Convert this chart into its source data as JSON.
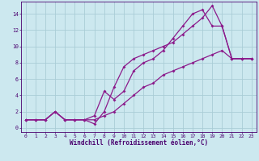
{
  "xlabel": "Windchill (Refroidissement éolien,°C)",
  "bg_color": "#cce8ef",
  "grid_color": "#aacdd6",
  "line_color": "#8b1a8b",
  "xlim": [
    -0.5,
    23.5
  ],
  "ylim": [
    -0.5,
    15.5
  ],
  "xticks": [
    0,
    1,
    2,
    3,
    4,
    5,
    6,
    7,
    8,
    9,
    10,
    11,
    12,
    13,
    14,
    15,
    16,
    17,
    18,
    19,
    20,
    21,
    22,
    23
  ],
  "yticks": [
    0,
    2,
    4,
    6,
    8,
    10,
    12,
    14
  ],
  "series1_x": [
    0,
    1,
    2,
    3,
    4,
    5,
    6,
    7,
    8,
    9,
    10,
    11,
    12,
    13,
    14,
    15,
    16,
    17,
    18,
    19,
    20,
    21,
    22,
    23
  ],
  "series1_y": [
    1,
    1,
    1,
    2,
    1,
    1,
    1,
    0.5,
    2,
    5,
    7.5,
    8.5,
    9,
    9.5,
    10,
    10.5,
    11.5,
    12.5,
    13.5,
    15,
    12.5,
    8.5,
    8.5,
    8.5
  ],
  "series2_x": [
    0,
    1,
    2,
    3,
    4,
    5,
    6,
    7,
    8,
    9,
    10,
    11,
    12,
    13,
    14,
    15,
    16,
    17,
    18,
    19,
    20,
    21,
    22,
    23
  ],
  "series2_y": [
    1,
    1,
    1,
    2,
    1,
    1,
    1,
    1.5,
    4.5,
    3.5,
    4.5,
    7,
    8,
    8.5,
    9.5,
    11,
    12.5,
    14,
    14.5,
    12.5,
    12.5,
    8.5,
    8.5,
    8.5
  ],
  "series3_x": [
    0,
    1,
    2,
    3,
    4,
    5,
    6,
    7,
    8,
    9,
    10,
    11,
    12,
    13,
    14,
    15,
    16,
    17,
    18,
    19,
    20,
    21,
    22,
    23
  ],
  "series3_y": [
    1,
    1,
    1,
    2,
    1,
    1,
    1,
    1,
    1.5,
    2,
    3,
    4,
    5,
    5.5,
    6.5,
    7,
    7.5,
    8,
    8.5,
    9,
    9.5,
    8.5,
    8.5,
    8.5
  ],
  "tick_color": "#4a006f",
  "xlabel_fontsize": 5.5,
  "tick_fontsize": 4.5,
  "marker_size": 2.0,
  "line_width": 0.9
}
